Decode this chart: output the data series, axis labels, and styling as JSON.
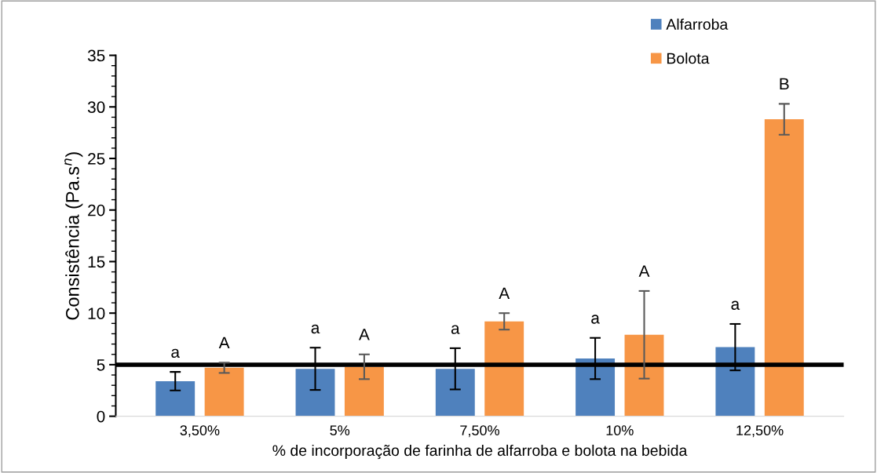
{
  "chart_data": {
    "type": "bar",
    "xlabel": "% de incorporação de farinha de alfarroba e bolota na bebida",
    "ylabel": "Consistência (Pa.s$^{n}$)",
    "categories": [
      "3,50%",
      "5%",
      "7,50%",
      "10%",
      "12,50%"
    ],
    "series": [
      {
        "name": "Alfarroba",
        "color": "#4f81bd",
        "values": [
          3.4,
          4.6,
          4.6,
          5.6,
          6.7
        ],
        "errors": [
          0.9,
          2.05,
          2.0,
          2.0,
          2.25
        ]
      },
      {
        "name": "Bolota",
        "color": "#f79646",
        "values": [
          4.7,
          4.8,
          9.2,
          7.9,
          28.8
        ],
        "errors": [
          0.5,
          1.2,
          0.8,
          4.25,
          1.5
        ]
      }
    ],
    "ylim": [
      0,
      35
    ],
    "yticks": [
      0,
      5,
      10,
      15,
      20,
      25,
      30,
      35
    ],
    "ref_lines": [
      {
        "axis": "y",
        "value": 5,
        "color": "#000000"
      }
    ],
    "annotations": [
      "a",
      "A",
      "a",
      "A",
      "a",
      "A",
      "a",
      "A",
      "a",
      "B"
    ],
    "legend": "top right",
    "grid": false
  }
}
